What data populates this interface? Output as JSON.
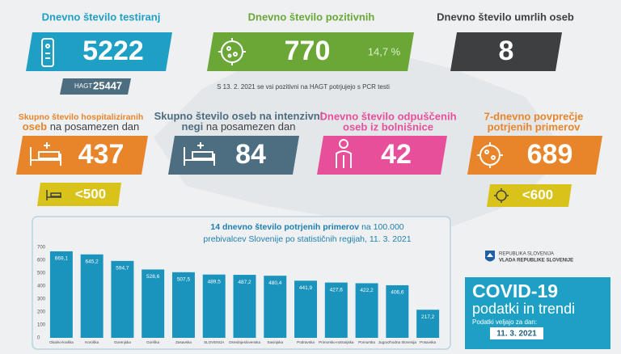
{
  "tests": {
    "title": "Dnevno število testiranj",
    "value": 5222,
    "hagt_label": "HAGT",
    "hagt_value": 25447
  },
  "positive": {
    "title": "Dnevno število pozitivnih",
    "value": 770,
    "share": "14,7 %"
  },
  "deaths": {
    "title": "Dnevno število umrlih oseb",
    "value": 8
  },
  "note": "S 13. 2. 2021 se vsi pozitivni na HAGT potrjujejo s PCR testi",
  "hospitalized": {
    "title_lines": [
      "Skupno število hospitaliziranih",
      "oseb"
    ],
    "subtitle": "na posamezen dan",
    "value": 437,
    "threshold": "<500"
  },
  "icu": {
    "title_lines": [
      "Skupno število oseb na intenzivni",
      "negi"
    ],
    "subtitle": "na posamezen dan",
    "value": 84
  },
  "discharged": {
    "title_lines": [
      "Dnevno število odpuščenih",
      "oseb iz bolnišnice"
    ],
    "value": 42
  },
  "average": {
    "title_lines": [
      "7-dnevno povprečje",
      "potrjenih primerov"
    ],
    "value": 689,
    "threshold": "<600"
  },
  "chart_data": {
    "type": "bar",
    "title": "14 dnevno število potrjenih primerov",
    "subtitle_lines": [
      "na 100.000",
      "prebivalcev Slovenije po statističnih regijah, 11. 3. 2021"
    ],
    "categories": [
      "Obalno-kraška",
      "Koroška",
      "Gorenjska",
      "Goriška",
      "Zasavska",
      "SLOVENIJA",
      "Osrednjeslovenska",
      "Savinjska",
      "Podravska",
      "Primorsko-notranjska",
      "Pomurska",
      "Jugovzhodna Slovenija",
      "Posavska"
    ],
    "values": [
      669.1,
      645.2,
      594.7,
      528.6,
      507.5,
      489.5,
      487.2,
      480.4,
      441.9,
      427.6,
      422.2,
      406.6,
      217.2
    ],
    "value_labels": [
      "669,1",
      "645,2",
      "594,7",
      "528,6",
      "507,5",
      "489,5",
      "487,2",
      "480,4",
      "441,9",
      "427,6",
      "422,2",
      "406,6",
      "217,2"
    ],
    "color": "#1a93bd",
    "ylim": [
      0,
      700
    ],
    "yticks": [
      0,
      100,
      200,
      300,
      400,
      500,
      600,
      700
    ],
    "grid": false
  },
  "logo": {
    "line1": "REPUBLIKA SLOVENIJA",
    "line2": "VLADA REPUBLIKE SLOVENIJE"
  },
  "footer": {
    "title": "COVID-19",
    "subtitle": "podatki in trendi",
    "date_label": "Podatki veljajo za dan:",
    "date": "11. 3. 2021"
  }
}
